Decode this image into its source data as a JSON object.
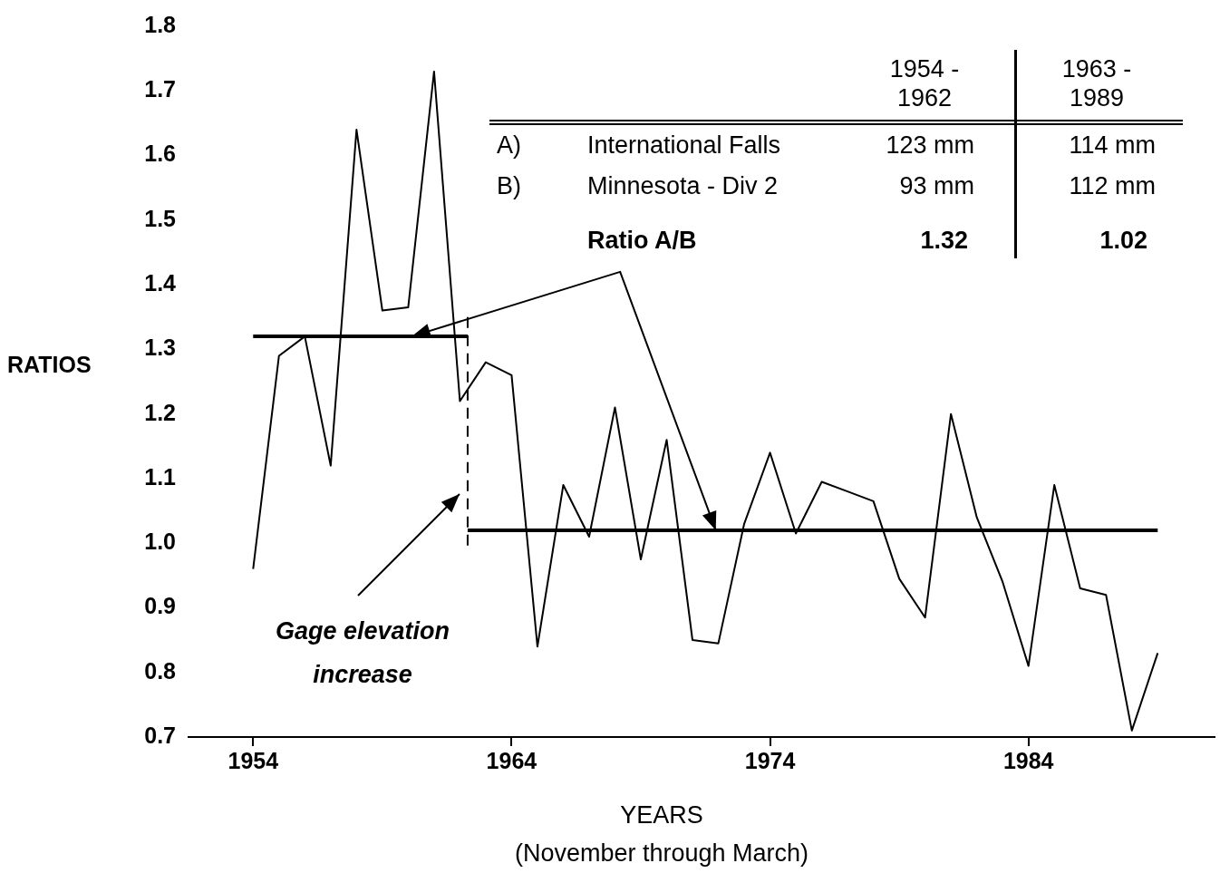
{
  "chart_data": {
    "type": "line",
    "ylabel": "RATIOS",
    "xlabel": "YEARS",
    "x": [
      1954,
      1955,
      1956,
      1957,
      1958,
      1959,
      1960,
      1961,
      1962,
      1963,
      1964,
      1965,
      1966,
      1967,
      1968,
      1969,
      1970,
      1971,
      1972,
      1973,
      1974,
      1975,
      1976,
      1977,
      1978,
      1979,
      1980,
      1981,
      1982,
      1983,
      1984,
      1985,
      1986,
      1987,
      1988,
      1989
    ],
    "series": [
      {
        "color": "#000000",
        "values": [
          0.96,
          1.29,
          1.32,
          1.12,
          1.64,
          1.36,
          1.365,
          1.73,
          1.22,
          1.28,
          1.26,
          0.84,
          1.09,
          1.01,
          1.21,
          0.975,
          1.16,
          0.85,
          0.845,
          1.03,
          1.14,
          1.015,
          1.095,
          1.08,
          1.065,
          0.945,
          0.885,
          1.2,
          1.04,
          0.94,
          0.81,
          1.09,
          0.93,
          0.92,
          0.71,
          0.83
        ]
      },
      {
        "color": "#000000",
        "x": [
          1954,
          1962.3
        ],
        "values": [
          1.32,
          1.32
        ]
      },
      {
        "color": "#000000",
        "x": [
          1962.3,
          1989
        ],
        "values": [
          1.02,
          1.02
        ]
      },
      {
        "color": "#000000",
        "x": [
          1962.3,
          1962.3
        ],
        "values": [
          1.35,
          0.99
        ],
        "line_style": "dashed"
      }
    ],
    "xlim": [
      1951.5,
      1991.2
    ],
    "xticks": [
      1954,
      1964,
      1974,
      1984
    ],
    "ylim": [
      0.7,
      1.8
    ],
    "yticks": [
      0.7,
      0.8,
      0.9,
      {
        "value": 1,
        "label": "1.0"
      },
      1.1,
      1.2,
      1.3,
      1.4,
      1.5,
      1.6,
      1.7,
      1.8
    ],
    "grid": false,
    "legend": false,
    "marker": "none",
    "annotations": [
      "Gage elevation increase",
      "1954 - 1962",
      "1963 - 1989",
      "A)",
      "International Falls",
      "123 mm",
      "114 mm",
      "B)",
      "Minnesota - Div 2",
      "93 mm",
      "112 mm",
      "Ratio A/B",
      "1.32",
      "1.02",
      "(November through March)"
    ]
  }
}
